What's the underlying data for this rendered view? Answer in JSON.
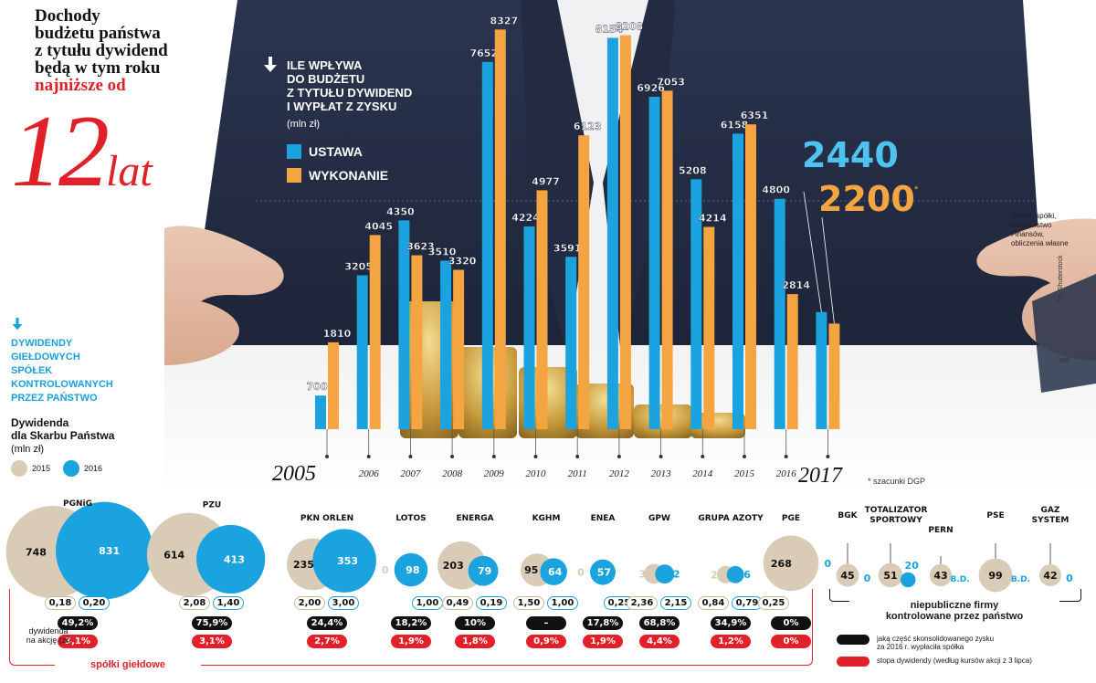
{
  "title": {
    "lines": [
      "Dochody",
      "budżetu państwa",
      "z tytułu dywidend",
      "będą w tym roku"
    ],
    "highlight": "najniższe od",
    "big_number": "12",
    "big_unit": "lat"
  },
  "legend": {
    "heading_lines": [
      "ILE WPŁYWA",
      "DO BUDŻETU",
      "Z TYTUŁU DYWIDEND",
      "I WYPŁAT Z ZYSKU"
    ],
    "unit": "(mln zł)",
    "ustawa": "USTAWA",
    "wykonanie": "WYKONANIE"
  },
  "colors": {
    "ustawa": "#1aa3df",
    "wykonanie": "#f4a440",
    "y2015": "#d9cbb5",
    "y2016": "#1aa3df",
    "accent_red": "#e2202a"
  },
  "callout": {
    "ustawa_2017": "2440",
    "wykonanie_2017": "2200",
    "star": "*"
  },
  "source": {
    "lines": [
      "Źródło: spółki,",
      "Ministerstwo",
      "Finansów,",
      "obliczenia własne"
    ]
  },
  "photo_credit": "fot. Shutterstock",
  "author": "RM",
  "footnote": "* szacunki DGP",
  "year_first": "2005",
  "year_last": "2017",
  "chart_data": [
    {
      "type": "bar",
      "title": "ILE WPŁYWA DO BUDŻETU Z TYTUŁU DYWIDEND I WYPŁAT Z ZYSKU",
      "ylabel": "(mln zł)",
      "categories": [
        "2005",
        "2006",
        "2007",
        "2008",
        "2009",
        "2010",
        "2011",
        "2012",
        "2013",
        "2014",
        "2015",
        "2016",
        "2017"
      ],
      "series": [
        {
          "name": "USTAWA",
          "values": [
            700,
            3205,
            4350,
            3510,
            7652,
            4224,
            3591,
            8154,
            6926,
            5208,
            6158,
            4800,
            2440
          ]
        },
        {
          "name": "WYKONANIE",
          "values": [
            1810,
            4045,
            3623,
            3320,
            8327,
            4977,
            6123,
            8208,
            7053,
            4214,
            6351,
            2814,
            2200
          ]
        }
      ],
      "value_labels": {
        "USTAWA": [
          "700",
          "3205",
          "4350",
          "3510",
          "7652",
          "4224",
          "3591",
          "8154",
          "6926",
          "5208",
          "6158",
          "4800",
          ""
        ],
        "WYKONANIE": [
          "1810",
          "4045",
          "3623",
          "3320",
          "8327",
          "4977",
          "6123",
          "8208",
          "7053",
          "4214",
          "6351",
          "2814",
          ""
        ]
      },
      "tick_labels": [
        "",
        "2006",
        "2007",
        "2008",
        "2009",
        "2010",
        "2011",
        "2012",
        "2013",
        "2014",
        "2015",
        "2016",
        ""
      ],
      "ylim": [
        0,
        8600
      ]
    },
    {
      "type": "bubble",
      "title": "DYWIDENDY GIEŁDOWYCH SPÓŁEK KONTROLOWANYCH PRZEZ PAŃSTWO",
      "subtitle": "Dywidenda dla Skarbu Państwa",
      "unit": "(mln zł)",
      "series_names": [
        "2015",
        "2016"
      ],
      "companies": [
        {
          "name": "PGNiG",
          "v2015": 748,
          "v2016": 831,
          "l2015": "748",
          "l2016": "831",
          "dps2015": "0,18",
          "dps2016": "0,20",
          "share": "49,2%",
          "yield": "3,1%"
        },
        {
          "name": "PZU",
          "v2015": 614,
          "v2016": 413,
          "l2015": "614",
          "l2016": "413",
          "dps2015": "2,08",
          "dps2016": "1,40",
          "share": "75,9%",
          "yield": "3,1%"
        },
        {
          "name": "PKN ORLEN",
          "v2015": 235,
          "v2016": 353,
          "l2015": "235",
          "l2016": "353",
          "dps2015": "2,00",
          "dps2016": "3,00",
          "share": "24,4%",
          "yield": "2,7%"
        },
        {
          "name": "LOTOS",
          "v2015": 0,
          "v2016": 98,
          "l2015": "0",
          "l2016": "98",
          "dps2015": "",
          "dps2016": "1,00",
          "share": "18,2%",
          "yield": "1,9%"
        },
        {
          "name": "ENERGA",
          "v2015": 203,
          "v2016": 79,
          "l2015": "203",
          "l2016": "79",
          "dps2015": "0,49",
          "dps2016": "0,19",
          "share": "10%",
          "yield": "1,8%"
        },
        {
          "name": "KGHM",
          "v2015": 95,
          "v2016": 64,
          "l2015": "95",
          "l2016": "64",
          "dps2015": "1,50",
          "dps2016": "1,00",
          "share": "–",
          "yield": "0,9%"
        },
        {
          "name": "ENEA",
          "v2015": 0,
          "v2016": 57,
          "l2015": "0",
          "l2016": "57",
          "dps2015": "",
          "dps2016": "0,25",
          "share": "17,8%",
          "yield": "1,9%"
        },
        {
          "name": "GPW",
          "v2015": 35,
          "v2016": 32,
          "l2015": "35",
          "l2016": "32",
          "dps2015": "2,36",
          "dps2016": "2,15",
          "share": "68,8%",
          "yield": "4,4%"
        },
        {
          "name": "GRUPA AZOTY",
          "v2015": 27,
          "v2016": 26,
          "l2015": "27",
          "l2016": "26",
          "dps2015": "0,84",
          "dps2016": "0,79",
          "share": "34,9%",
          "yield": "1,2%"
        },
        {
          "name": "PGE",
          "v2015": 268,
          "v2016": 0,
          "l2015": "268",
          "l2016": "0",
          "dps2015": "0,25",
          "dps2016": "",
          "share": "0%",
          "yield": "0%"
        }
      ],
      "private": [
        {
          "name": "BGK",
          "v2015": 45,
          "v2016": 0,
          "l2015": "45",
          "l2016": "0"
        },
        {
          "name": "TOTALIZATOR SPORTOWY",
          "v2015": 51,
          "v2016": 20,
          "l2015": "51",
          "l2016": "20"
        },
        {
          "name": "PERN",
          "v2015": 43,
          "v2016": null,
          "l2015": "43",
          "l2016": "B.D."
        },
        {
          "name": "PSE",
          "v2015": 99,
          "v2016": null,
          "l2015": "99",
          "l2016": "B.D."
        },
        {
          "name": "GAZ SYSTEM",
          "v2015": 42,
          "v2016": 0,
          "l2015": "42",
          "l2016": "0"
        }
      ]
    }
  ],
  "div_legend": {
    "heading_lines": [
      "DYWIDENDY",
      "GIEŁDOWYCH",
      "SPÓŁEK",
      "KONTROLOWANYCH",
      "PRZEZ PAŃSTWO"
    ],
    "sub_lines": [
      "Dywidenda",
      "dla Skarbu Państwa"
    ],
    "unit": "(mln zł)",
    "y2015": "2015",
    "y2016": "2016"
  },
  "labels": {
    "dywidenda_lines": [
      "dywidenda",
      "na akcję (zł)"
    ],
    "gieldowe": "spółki giełdowe",
    "niepubliczne_lines": [
      "niepubliczne firmy",
      "kontrolowane przez państwo"
    ],
    "key_black_lines": [
      "jaką część skonsolidowanego zysku",
      "za 2016 r. wypłaciła spółka"
    ],
    "key_red": "stopa dywidendy (według kursów akcji z 3 lipca)"
  }
}
